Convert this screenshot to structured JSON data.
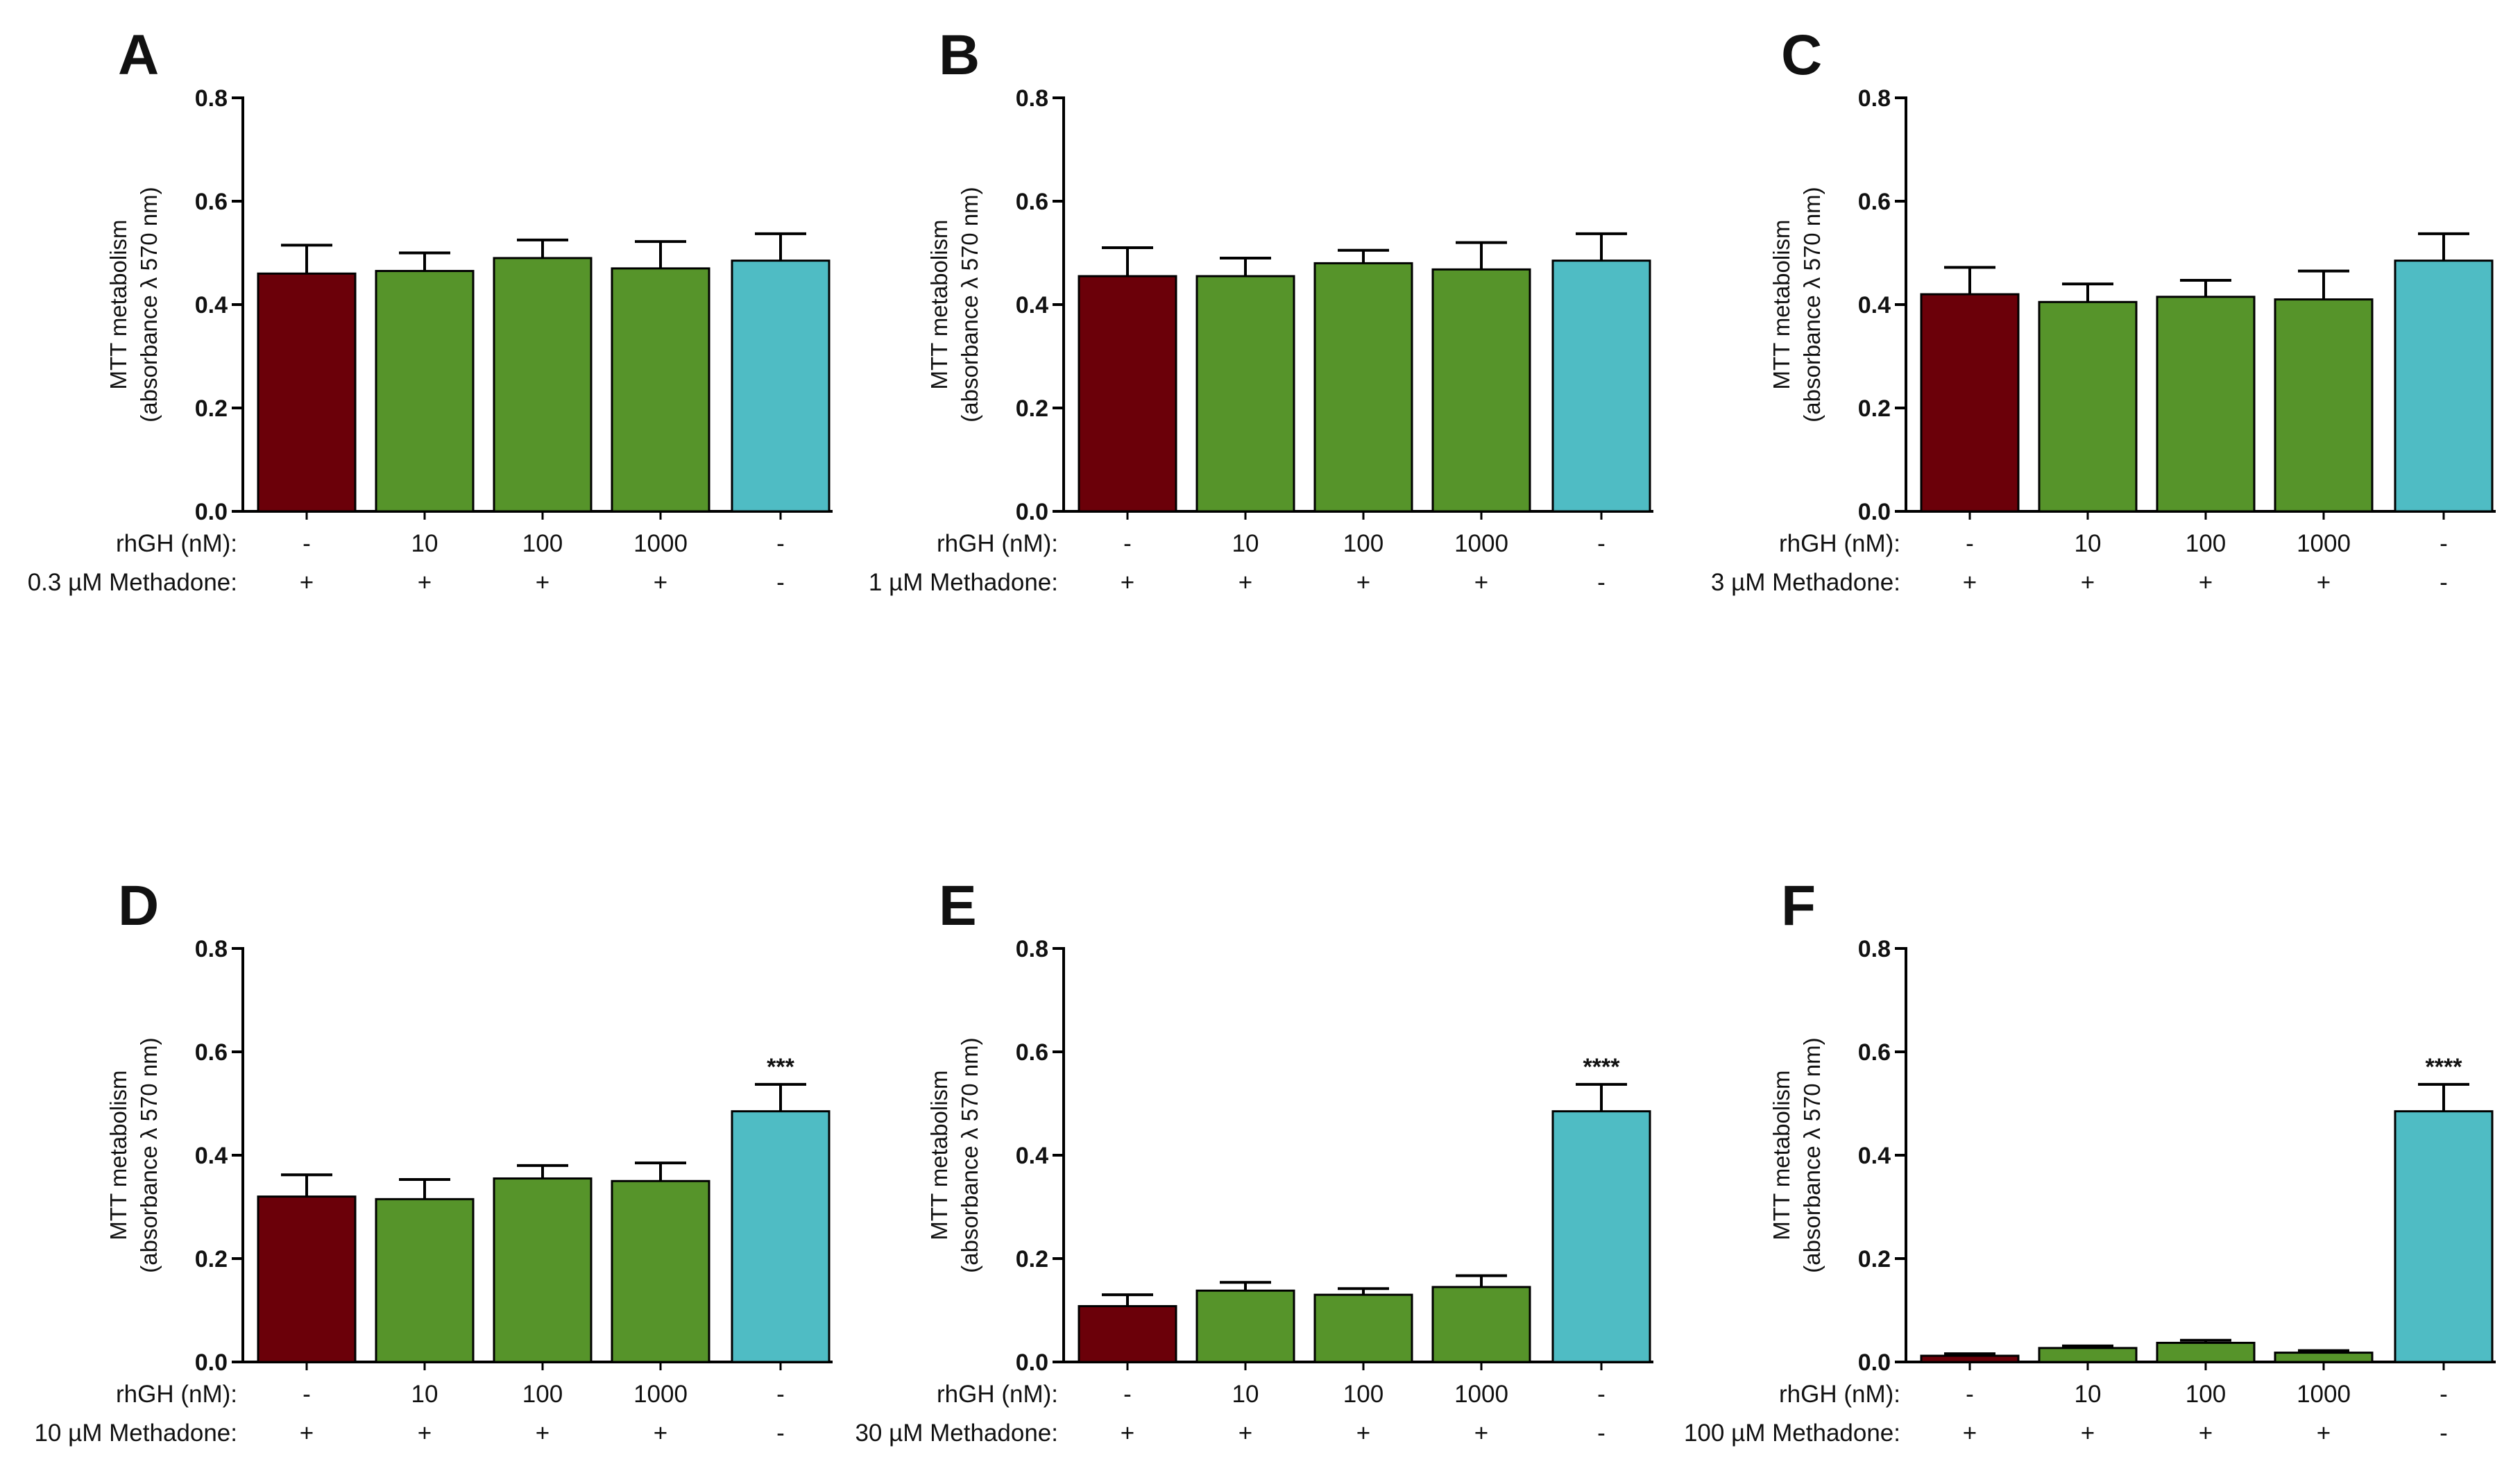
{
  "colors": {
    "control": "#6b0009",
    "rhgh": "#56942a",
    "vehicle": "#4fbcc4",
    "axis": "#000000"
  },
  "chart_data": [
    {
      "panel": "A",
      "type": "bar",
      "ylabel": [
        "MTT metabolism",
        "(absorbance λ 570 nm)"
      ],
      "ylim": [
        0,
        0.8
      ],
      "yticks": [
        "0.0",
        "0.2",
        "0.4",
        "0.6",
        "0.8"
      ],
      "row1_label": "rhGH (nM):",
      "row2_label": "0.3 µM Methadone:",
      "rhgh": [
        "-",
        "10",
        "100",
        "1000",
        "-"
      ],
      "methadone": [
        "+",
        "+",
        "+",
        "+",
        "-"
      ],
      "values": [
        0.46,
        0.465,
        0.49,
        0.47,
        0.485
      ],
      "errors": [
        0.055,
        0.035,
        0.035,
        0.052,
        0.052
      ],
      "bar_colors": [
        "control",
        "rhgh",
        "rhgh",
        "rhgh",
        "vehicle"
      ],
      "significance": [
        "",
        "",
        "",
        "",
        ""
      ]
    },
    {
      "panel": "B",
      "type": "bar",
      "ylabel": [
        "MTT metabolism",
        "(absorbance λ 570 nm)"
      ],
      "ylim": [
        0,
        0.8
      ],
      "yticks": [
        "0.0",
        "0.2",
        "0.4",
        "0.6",
        "0.8"
      ],
      "row1_label": "rhGH (nM):",
      "row2_label": "1 µM Methadone:",
      "rhgh": [
        "-",
        "10",
        "100",
        "1000",
        "-"
      ],
      "methadone": [
        "+",
        "+",
        "+",
        "+",
        "-"
      ],
      "values": [
        0.455,
        0.455,
        0.48,
        0.468,
        0.485
      ],
      "errors": [
        0.055,
        0.035,
        0.025,
        0.052,
        0.052
      ],
      "bar_colors": [
        "control",
        "rhgh",
        "rhgh",
        "rhgh",
        "vehicle"
      ],
      "significance": [
        "",
        "",
        "",
        "",
        ""
      ]
    },
    {
      "panel": "C",
      "type": "bar",
      "ylabel": [
        "MTT metabolism",
        "(absorbance λ 570 nm)"
      ],
      "ylim": [
        0,
        0.8
      ],
      "yticks": [
        "0.0",
        "0.2",
        "0.4",
        "0.6",
        "0.8"
      ],
      "row1_label": "rhGH (nM):",
      "row2_label": "3 µM Methadone:",
      "rhgh": [
        "-",
        "10",
        "100",
        "1000",
        "-"
      ],
      "methadone": [
        "+",
        "+",
        "+",
        "+",
        "-"
      ],
      "values": [
        0.42,
        0.405,
        0.415,
        0.41,
        0.485
      ],
      "errors": [
        0.052,
        0.035,
        0.032,
        0.055,
        0.052
      ],
      "bar_colors": [
        "control",
        "rhgh",
        "rhgh",
        "rhgh",
        "vehicle"
      ],
      "significance": [
        "",
        "",
        "",
        "",
        ""
      ]
    },
    {
      "panel": "D",
      "type": "bar",
      "ylabel": [
        "MTT metabolism",
        "(absorbance λ 570 nm)"
      ],
      "ylim": [
        0,
        0.8
      ],
      "yticks": [
        "0.0",
        "0.2",
        "0.4",
        "0.6",
        "0.8"
      ],
      "row1_label": "rhGH (nM):",
      "row2_label": "10 µM Methadone:",
      "rhgh": [
        "-",
        "10",
        "100",
        "1000",
        "-"
      ],
      "methadone": [
        "+",
        "+",
        "+",
        "+",
        "-"
      ],
      "values": [
        0.32,
        0.315,
        0.355,
        0.35,
        0.485
      ],
      "errors": [
        0.042,
        0.038,
        0.025,
        0.035,
        0.052
      ],
      "bar_colors": [
        "control",
        "rhgh",
        "rhgh",
        "rhgh",
        "vehicle"
      ],
      "significance": [
        "",
        "",
        "",
        "",
        "***"
      ]
    },
    {
      "panel": "E",
      "type": "bar",
      "ylabel": [
        "MTT metabolism",
        "(absorbance λ 570 nm)"
      ],
      "ylim": [
        0,
        0.8
      ],
      "yticks": [
        "0.0",
        "0.2",
        "0.4",
        "0.6",
        "0.8"
      ],
      "row1_label": "rhGH (nM):",
      "row2_label": "30 µM Methadone:",
      "rhgh": [
        "-",
        "10",
        "100",
        "1000",
        "-"
      ],
      "methadone": [
        "+",
        "+",
        "+",
        "+",
        "-"
      ],
      "values": [
        0.108,
        0.138,
        0.13,
        0.145,
        0.485
      ],
      "errors": [
        0.022,
        0.016,
        0.012,
        0.022,
        0.052
      ],
      "bar_colors": [
        "control",
        "rhgh",
        "rhgh",
        "rhgh",
        "vehicle"
      ],
      "significance": [
        "",
        "",
        "",
        "",
        "****"
      ]
    },
    {
      "panel": "F",
      "type": "bar",
      "ylabel": [
        "MTT metabolism",
        "(absorbance λ 570 nm)"
      ],
      "ylim": [
        0,
        0.8
      ],
      "yticks": [
        "0.0",
        "0.2",
        "0.4",
        "0.6",
        "0.8"
      ],
      "row1_label": "rhGH (nM):",
      "row2_label": "100 µM Methadone:",
      "rhgh": [
        "-",
        "10",
        "100",
        "1000",
        "-"
      ],
      "methadone": [
        "+",
        "+",
        "+",
        "+",
        "-"
      ],
      "values": [
        0.012,
        0.027,
        0.037,
        0.018,
        0.485
      ],
      "errors": [
        0.004,
        0.004,
        0.005,
        0.004,
        0.052
      ],
      "bar_colors": [
        "control",
        "rhgh",
        "rhgh",
        "rhgh",
        "vehicle"
      ],
      "significance": [
        "",
        "",
        "",
        "",
        "****"
      ]
    }
  ]
}
